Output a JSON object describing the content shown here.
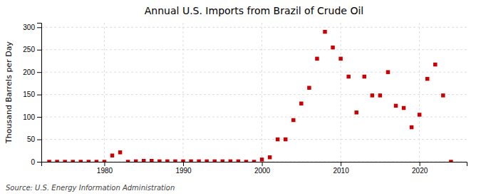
{
  "chart_data": {
    "type": "scatter",
    "title": "Annual U.S. Imports from Brazil of Crude Oil",
    "ylabel": "Thousand Barrels per Day",
    "source": "Source: U.S. Energy Information Administration",
    "x": [
      1973,
      1974,
      1975,
      1976,
      1977,
      1978,
      1979,
      1980,
      1981,
      1982,
      1983,
      1984,
      1985,
      1986,
      1987,
      1988,
      1989,
      1990,
      1991,
      1992,
      1993,
      1994,
      1995,
      1996,
      1997,
      1998,
      1999,
      2000,
      2001,
      2002,
      2003,
      2004,
      2005,
      2006,
      2007,
      2008,
      2009,
      2010,
      2011,
      2012,
      2013,
      2014,
      2015,
      2016,
      2017,
      2018,
      2019,
      2020,
      2021,
      2022,
      2023,
      2024
    ],
    "values": [
      0,
      0,
      0,
      0,
      0,
      0,
      0,
      0,
      14,
      21,
      0,
      1,
      2,
      2,
      1,
      1,
      1,
      1,
      1,
      1,
      1,
      1,
      1,
      1,
      1,
      0,
      0,
      5,
      10,
      50,
      50,
      93,
      130,
      165,
      230,
      290,
      255,
      230,
      190,
      110,
      190,
      148,
      148,
      200,
      125,
      120,
      77,
      105,
      185,
      217,
      148,
      0
    ],
    "color": "#cc0000",
    "marker": "square",
    "xlim": [
      1972,
      2026
    ],
    "ylim": [
      0,
      310
    ],
    "xticks": [
      1980,
      1990,
      2000,
      2010,
      2020
    ],
    "yticks": [
      0,
      50,
      100,
      150,
      200,
      250,
      300
    ],
    "grid": true
  }
}
